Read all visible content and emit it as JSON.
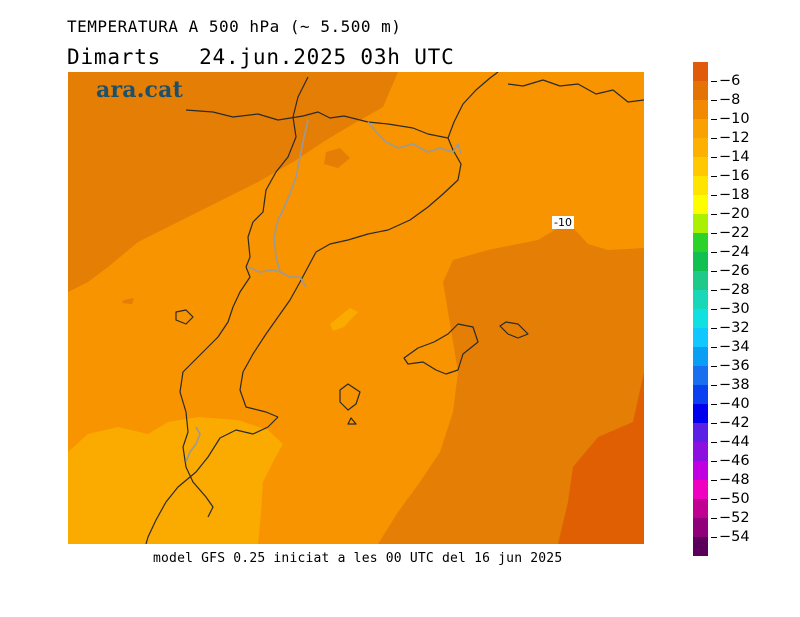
{
  "title": {
    "line1": "TEMPERATURA A 500 hPa (~ 5.500 m)",
    "day": "Dimarts",
    "date": "24.jun.2025 03h UTC"
  },
  "map": {
    "logo": "ara.cat",
    "contour_label": "-10"
  },
  "footer": "model GFS 0.25 iniciat a les 00 UTC del 16 jun 2025",
  "legend": {
    "labels": [
      "-6",
      "-8",
      "-10",
      "-12",
      "-14",
      "-16",
      "-18",
      "-20",
      "-22",
      "-24",
      "-26",
      "-28",
      "-30",
      "-32",
      "-34",
      "-36",
      "-38",
      "-40",
      "-42",
      "-44",
      "-46",
      "-48",
      "-50",
      "-52",
      "-54"
    ],
    "colors": [
      "#e05a0a",
      "#e57205",
      "#f18a00",
      "#f9a100",
      "#fdb000",
      "#ffc800",
      "#ffe400",
      "#fffe00",
      "#aaf000",
      "#2ad22a",
      "#10c050",
      "#1ec98a",
      "#18d8b8",
      "#10e0e0",
      "#10c8ff",
      "#0a9ef5",
      "#1a6ef0",
      "#0a40f0",
      "#0000ee",
      "#5a20e6",
      "#8c10e0",
      "#c000e0",
      "#f000c0",
      "#c00090",
      "#90007a",
      "#5a005a"
    ]
  }
}
